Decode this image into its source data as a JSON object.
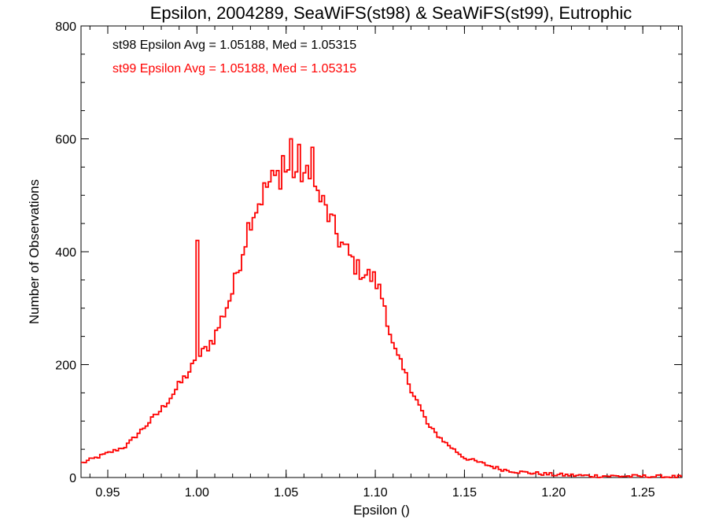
{
  "chart_data": {
    "type": "line",
    "title": "Epsilon, 2004289, SeaWiFS(st98) & SeaWiFS(st99), Eutrophic",
    "xlabel": "Epsilon ()",
    "ylabel": "Number of Observations",
    "xlim": [
      0.935,
      1.272
    ],
    "ylim": [
      0,
      800
    ],
    "xticks": [
      0.95,
      1.0,
      1.05,
      1.1,
      1.15,
      1.2,
      1.25
    ],
    "xtick_labels": [
      "0.95",
      "1.00",
      "1.05",
      "1.10",
      "1.15",
      "1.20",
      "1.25"
    ],
    "yticks": [
      0,
      200,
      400,
      600,
      800
    ],
    "ytick_labels": [
      "0",
      "200",
      "400",
      "600",
      "800"
    ],
    "grid": false,
    "annotations": [
      {
        "text": "st98 Epsilon Avg = 1.05188, Med = 1.05315",
        "color": "#000000"
      },
      {
        "text": "st99 Epsilon Avg = 1.05188, Med = 1.05315",
        "color": "#ff0000"
      }
    ],
    "series": [
      {
        "color": "#000000",
        "control_points": [
          [
            0.935,
            25
          ],
          [
            0.96,
            55
          ],
          [
            0.98,
            120
          ],
          [
            0.995,
            185
          ],
          [
            1.01,
            250
          ],
          [
            1.02,
            330
          ],
          [
            1.03,
            460
          ],
          [
            1.04,
            520
          ],
          [
            1.05,
            545
          ],
          [
            1.06,
            540
          ],
          [
            1.07,
            490
          ],
          [
            1.08,
            420
          ],
          [
            1.09,
            370
          ],
          [
            1.1,
            350
          ],
          [
            1.105,
            310
          ],
          [
            1.11,
            230
          ],
          [
            1.12,
            160
          ],
          [
            1.13,
            90
          ],
          [
            1.14,
            60
          ],
          [
            1.15,
            35
          ],
          [
            1.16,
            25
          ],
          [
            1.17,
            15
          ],
          [
            1.18,
            10
          ],
          [
            1.2,
            5
          ],
          [
            1.22,
            3
          ],
          [
            1.25,
            2
          ],
          [
            1.272,
            1
          ]
        ],
        "spikes": [
          [
            1.0,
            420
          ],
          [
            1.0525,
            600
          ],
          [
            1.065,
            585
          ],
          [
            1.048,
            570
          ],
          [
            1.0575,
            590
          ]
        ]
      },
      {
        "color": "#ff0000",
        "control_points": [
          [
            0.935,
            25
          ],
          [
            0.96,
            55
          ],
          [
            0.98,
            120
          ],
          [
            0.995,
            185
          ],
          [
            1.01,
            250
          ],
          [
            1.02,
            330
          ],
          [
            1.03,
            460
          ],
          [
            1.04,
            520
          ],
          [
            1.05,
            545
          ],
          [
            1.06,
            540
          ],
          [
            1.07,
            490
          ],
          [
            1.08,
            420
          ],
          [
            1.09,
            370
          ],
          [
            1.1,
            350
          ],
          [
            1.105,
            310
          ],
          [
            1.11,
            230
          ],
          [
            1.12,
            160
          ],
          [
            1.13,
            90
          ],
          [
            1.14,
            60
          ],
          [
            1.15,
            35
          ],
          [
            1.16,
            25
          ],
          [
            1.17,
            15
          ],
          [
            1.18,
            10
          ],
          [
            1.2,
            5
          ],
          [
            1.22,
            3
          ],
          [
            1.25,
            2
          ],
          [
            1.272,
            1
          ]
        ],
        "spikes": [
          [
            1.0,
            420
          ],
          [
            1.0525,
            600
          ],
          [
            1.065,
            585
          ],
          [
            1.048,
            570
          ],
          [
            1.0575,
            590
          ]
        ]
      }
    ],
    "bin_width": 0.0015
  }
}
